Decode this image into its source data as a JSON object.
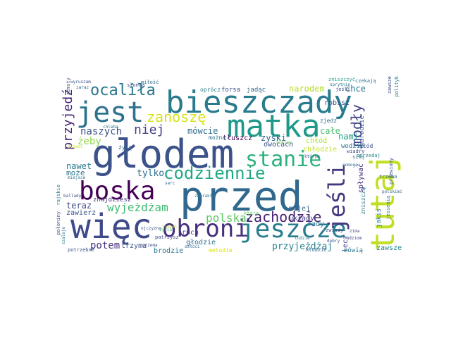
{
  "words": [
    {
      "text": "głodem",
      "color": "#3b528b"
    },
    {
      "text": "przed",
      "color": "#31688e"
    },
    {
      "text": "bieszczady",
      "color": "#287c8e"
    },
    {
      "text": "matka",
      "color": "#1f9a8a"
    },
    {
      "text": "tutaj",
      "color": "#c2df23"
    },
    {
      "text": "więc",
      "color": "#3e4a89"
    },
    {
      "text": "boska",
      "color": "#440154"
    },
    {
      "text": "jest",
      "color": "#2c728e"
    },
    {
      "text": "obroni",
      "color": "#472f7d"
    },
    {
      "text": "jeszcze",
      "color": "#287d8e"
    },
    {
      "text": "stanie",
      "color": "#2db27d"
    },
    {
      "text": "jeśli",
      "color": "#453781"
    },
    {
      "text": "codziennie",
      "color": "#22a884"
    },
    {
      "text": "ocaliła",
      "color": "#2a788e"
    },
    {
      "text": "zanoszę",
      "color": "#d8e219"
    },
    {
      "text": "modły",
      "color": "#414487"
    },
    {
      "text": "zachodzie",
      "color": "#481f70"
    },
    {
      "text": "niej",
      "color": "#433e85"
    },
    {
      "text": "wyjeżdżam",
      "color": "#3fbc73"
    },
    {
      "text": "polska",
      "color": "#5ec962"
    },
    {
      "text": "przyjedź",
      "color": "#482475"
    },
    {
      "text": "mówcie",
      "color": "#2f6c8e"
    },
    {
      "text": "naszych",
      "color": "#3b528b"
    },
    {
      "text": "żeby",
      "color": "#8fd744"
    },
    {
      "text": "potem",
      "color": "#46337e"
    },
    {
      "text": "tylko",
      "color": "#2d708e"
    },
    {
      "text": "przyjeżdżaj",
      "color": "#27808e"
    },
    {
      "text": "narodem",
      "color": "#b5de2b"
    },
    {
      "text": "chce",
      "color": "#2a768e"
    },
    {
      "text": "całe",
      "color": "#4ac16d"
    },
    {
      "text": "nami",
      "color": "#1fa088"
    },
    {
      "text": "nawet",
      "color": "#287c8e"
    },
    {
      "text": "teraz",
      "color": "#3e4989"
    },
    {
      "text": "zawsze",
      "color": "#25858e"
    },
    {
      "text": "może",
      "color": "#2b758e"
    },
    {
      "text": "trzyma",
      "color": "#3b528b"
    },
    {
      "text": "brodzie",
      "color": "#2a788e"
    },
    {
      "text": "głodzie",
      "color": "#2e6e8e"
    },
    {
      "text": "układy",
      "color": "#433e85"
    },
    {
      "text": "zniszczyć",
      "color": "#1f9e89"
    },
    {
      "text": "zawierz",
      "color": "#3b528b"
    },
    {
      "text": "znajdziesz",
      "color": "#46327e"
    },
    {
      "text": "ruch",
      "color": "#3e4a89"
    },
    {
      "text": "mojej",
      "color": "#355f8d"
    },
    {
      "text": "rady",
      "color": "#2c728e"
    },
    {
      "text": "sprzedaj",
      "color": "#26828e"
    },
    {
      "text": "zjedz",
      "color": "#31688e"
    },
    {
      "text": "robisz",
      "color": "#3b528b"
    },
    {
      "text": "wodzie",
      "color": "#2a788e"
    },
    {
      "text": "lecz",
      "color": "#3e4989"
    },
    {
      "text": "spływać",
      "color": "#472d7b"
    },
    {
      "text": "zniszczą",
      "color": "#2c728e"
    },
    {
      "text": "chłodzie",
      "color": "#bddf26"
    },
    {
      "text": "chłód",
      "color": "#addc30"
    },
    {
      "text": "owocach",
      "color": "#3b528b"
    },
    {
      "text": "zyski",
      "color": "#31688e"
    },
    {
      "text": "mówią",
      "color": "#2a788e"
    },
    {
      "text": "głód",
      "color": "#3e4989"
    },
    {
      "text": "tłuszcz",
      "color": "#440154"
    },
    {
      "text": "można",
      "color": "#2c728e"
    },
    {
      "text": "forsa",
      "color": "#3b528b"
    },
    {
      "text": "jadąc",
      "color": "#31688e"
    },
    {
      "text": "oprócz",
      "color": "#2a788e"
    },
    {
      "text": "jeśli",
      "color": "#3e4989"
    },
    {
      "text": "czekają",
      "color": "#2c728e"
    },
    {
      "text": "narodzie",
      "color": "#3b528b"
    },
    {
      "text": "którym",
      "color": "#3e4989"
    },
    {
      "text": "jakiś",
      "color": "#2a788e"
    },
    {
      "text": "zwiady",
      "color": "#3e4989"
    },
    {
      "text": "kłodzie",
      "color": "#31688e"
    },
    {
      "text": "metodie",
      "color": "#d8e219"
    },
    {
      "text": "patrzysz",
      "color": "#3e4989"
    },
    {
      "text": "potrzebne",
      "color": "#3b528b"
    },
    {
      "text": "zabrakło",
      "color": "#2a788e"
    },
    {
      "text": "serc",
      "color": "#31688e"
    },
    {
      "text": "która",
      "color": "#5ec962"
    },
    {
      "text": "życia",
      "color": "#4ac16d"
    },
    {
      "text": "którą",
      "color": "#7ad151"
    },
    {
      "text": "ojczyzno",
      "color": "#3b528b"
    },
    {
      "text": "zawsze",
      "color": "#3b528b"
    },
    {
      "text": "polityk",
      "color": "#2a788e"
    },
    {
      "text": "pomogą",
      "color": "#31688e"
    },
    {
      "text": "wiadry",
      "color": "#3e4989"
    },
    {
      "text": "siłą",
      "color": "#2c728e"
    },
    {
      "text": "trzeba",
      "color": "#31688e"
    },
    {
      "text": "przewiony",
      "color": "#3b528b"
    },
    {
      "text": "jesienią",
      "color": "#2a788e"
    },
    {
      "text": "polskimi",
      "color": "#31688e"
    },
    {
      "text": "ludziom",
      "color": "#3e4989"
    },
    {
      "text": "dobry",
      "color": "#3b528b"
    },
    {
      "text": "zima",
      "color": "#3e4989"
    },
    {
      "text": "sprytnie",
      "color": "#2c728e"
    },
    {
      "text": "wyruszam",
      "color": "#3b528b"
    },
    {
      "text": "zaraz",
      "color": "#31688e"
    },
    {
      "text": "chleba",
      "color": "#2a788e"
    },
    {
      "text": "słońca",
      "color": "#3e4989"
    },
    {
      "text": "miłość",
      "color": "#2c728e"
    },
    {
      "text": "zemsty",
      "color": "#3b528b"
    },
    {
      "text": "żyją",
      "color": "#31688e"
    },
    {
      "text": "ballady",
      "color": "#3e4989"
    },
    {
      "text": "rajskie",
      "color": "#2a788e"
    },
    {
      "text": "połoniny",
      "color": "#3b528b"
    },
    {
      "text": "miejsce",
      "color": "#2c728e"
    },
    {
      "text": "ozłoci",
      "color": "#31688e"
    },
    {
      "text": "szaleje",
      "color": "#2a788e"
    },
    {
      "text": "orzema",
      "color": "#3e4989"
    },
    {
      "text": "tanimi",
      "color": "#addc30"
    },
    {
      "text": "ludzie",
      "color": "#2a788e"
    },
    {
      "text": "dzieci",
      "color": "#c2df23"
    }
  ]
}
